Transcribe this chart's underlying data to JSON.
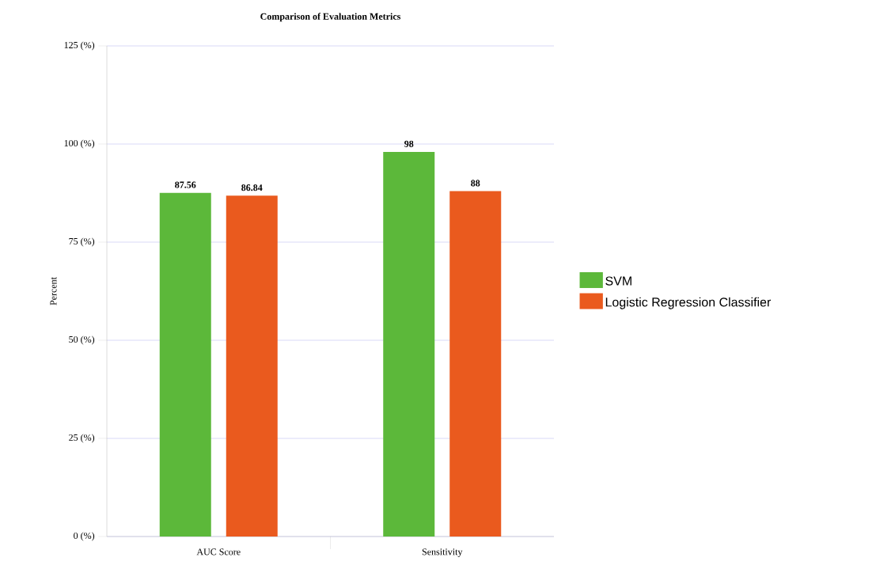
{
  "chart_data": {
    "type": "bar",
    "title": "Comparison of Evaluation Metrics",
    "ylabel": "Percent",
    "categories": [
      "AUC Score",
      "Sensitivity"
    ],
    "series": [
      {
        "name": "SVM",
        "color": "#5cb83a",
        "values": [
          87.56,
          98
        ]
      },
      {
        "name": "Logistic Regression Classifier",
        "color": "#ea5a1e",
        "values": [
          86.84,
          88
        ]
      }
    ],
    "ylim": [
      0,
      125
    ],
    "yticks": [
      {
        "value": 0,
        "label": "0 (%)"
      },
      {
        "value": 25,
        "label": "25 (%)"
      },
      {
        "value": 50,
        "label": "50 (%)"
      },
      {
        "value": 75,
        "label": "75 (%)"
      },
      {
        "value": 100,
        "label": "100 (%)"
      },
      {
        "value": 125,
        "label": "125 (%)"
      }
    ],
    "grid": "y",
    "legend": "right",
    "data_labels": true
  }
}
